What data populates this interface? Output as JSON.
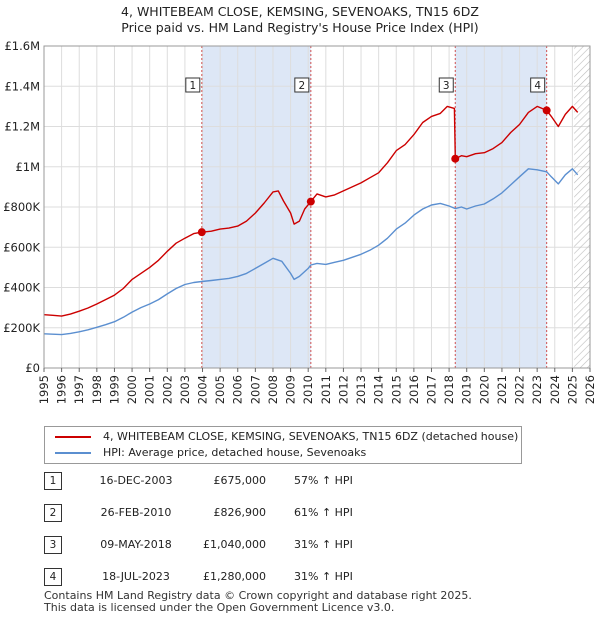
{
  "header": {
    "title_line1": "4, WHITEBEAM CLOSE, KEMSING, SEVENOAKS, TN15 6DZ",
    "title_line2": "Price paid vs. HM Land Registry's House Price Index (HPI)"
  },
  "colors": {
    "property_line": "#cc0000",
    "hpi_line": "#5b8fd0",
    "shade": "#dde7f6",
    "marker_line": "#d05050",
    "grid": "#dddddd",
    "hatch": "#bbbbbb"
  },
  "chart_data": {
    "type": "line",
    "title": "4, WHITEBEAM CLOSE, KEMSING, SEVENOAKS, TN15 6DZ — Price paid vs. HM Land Registry's House Price Index (HPI)",
    "xlim": [
      1995,
      2026
    ],
    "ylim": [
      0,
      1600000
    ],
    "x_ticks": [
      "1995",
      "1996",
      "1997",
      "1998",
      "1999",
      "2000",
      "2001",
      "2002",
      "2003",
      "2004",
      "2005",
      "2006",
      "2007",
      "2008",
      "2009",
      "2010",
      "2011",
      "2012",
      "2013",
      "2014",
      "2015",
      "2016",
      "2017",
      "2018",
      "2019",
      "2020",
      "2021",
      "2022",
      "2023",
      "2024",
      "2025",
      "2026"
    ],
    "y_ticks": [
      {
        "value": 0,
        "label": "£0"
      },
      {
        "value": 200000,
        "label": "£200K"
      },
      {
        "value": 400000,
        "label": "£400K"
      },
      {
        "value": 600000,
        "label": "£600K"
      },
      {
        "value": 800000,
        "label": "£800K"
      },
      {
        "value": 1000000,
        "label": "£1M"
      },
      {
        "value": 1200000,
        "label": "£1.2M"
      },
      {
        "value": 1400000,
        "label": "£1.4M"
      },
      {
        "value": 1600000,
        "label": "£1.6M"
      }
    ],
    "shaded_ranges": [
      [
        2003.96,
        2010.15
      ],
      [
        2018.35,
        2023.54
      ]
    ],
    "future_from": 2025.1,
    "series": [
      {
        "name": "4, WHITEBEAM CLOSE, KEMSING, SEVENOAKS, TN15 6DZ (detached house)",
        "points": [
          [
            1995.0,
            265000
          ],
          [
            1995.5,
            262000
          ],
          [
            1996.0,
            258000
          ],
          [
            1996.5,
            268000
          ],
          [
            1997.0,
            282000
          ],
          [
            1997.5,
            298000
          ],
          [
            1998.0,
            318000
          ],
          [
            1998.5,
            340000
          ],
          [
            1999.0,
            362000
          ],
          [
            1999.5,
            395000
          ],
          [
            2000.0,
            440000
          ],
          [
            2000.5,
            470000
          ],
          [
            2001.0,
            500000
          ],
          [
            2001.5,
            535000
          ],
          [
            2002.0,
            580000
          ],
          [
            2002.5,
            620000
          ],
          [
            2003.0,
            645000
          ],
          [
            2003.5,
            668000
          ],
          [
            2003.96,
            675000
          ],
          [
            2004.5,
            680000
          ],
          [
            2005.0,
            690000
          ],
          [
            2005.5,
            695000
          ],
          [
            2006.0,
            705000
          ],
          [
            2006.5,
            730000
          ],
          [
            2007.0,
            770000
          ],
          [
            2007.5,
            820000
          ],
          [
            2008.0,
            875000
          ],
          [
            2008.3,
            880000
          ],
          [
            2008.6,
            830000
          ],
          [
            2009.0,
            770000
          ],
          [
            2009.2,
            715000
          ],
          [
            2009.5,
            730000
          ],
          [
            2009.8,
            790000
          ],
          [
            2010.15,
            826900
          ],
          [
            2010.5,
            865000
          ],
          [
            2011.0,
            850000
          ],
          [
            2011.5,
            860000
          ],
          [
            2012.0,
            880000
          ],
          [
            2012.5,
            900000
          ],
          [
            2013.0,
            920000
          ],
          [
            2013.5,
            945000
          ],
          [
            2014.0,
            970000
          ],
          [
            2014.5,
            1020000
          ],
          [
            2015.0,
            1080000
          ],
          [
            2015.5,
            1110000
          ],
          [
            2016.0,
            1160000
          ],
          [
            2016.5,
            1220000
          ],
          [
            2017.0,
            1250000
          ],
          [
            2017.5,
            1265000
          ],
          [
            2017.9,
            1300000
          ],
          [
            2018.3,
            1290000
          ],
          [
            2018.35,
            1040000
          ],
          [
            2018.7,
            1055000
          ],
          [
            2019.0,
            1050000
          ],
          [
            2019.5,
            1065000
          ],
          [
            2020.0,
            1070000
          ],
          [
            2020.5,
            1090000
          ],
          [
            2021.0,
            1120000
          ],
          [
            2021.5,
            1170000
          ],
          [
            2022.0,
            1210000
          ],
          [
            2022.5,
            1270000
          ],
          [
            2023.0,
            1300000
          ],
          [
            2023.54,
            1280000
          ],
          [
            2023.8,
            1250000
          ],
          [
            2024.2,
            1200000
          ],
          [
            2024.6,
            1260000
          ],
          [
            2025.0,
            1300000
          ],
          [
            2025.3,
            1270000
          ]
        ]
      },
      {
        "name": "HPI: Average price, detached house, Sevenoaks",
        "points": [
          [
            1995.0,
            170000
          ],
          [
            1995.5,
            168000
          ],
          [
            1996.0,
            166000
          ],
          [
            1996.5,
            172000
          ],
          [
            1997.0,
            180000
          ],
          [
            1997.5,
            190000
          ],
          [
            1998.0,
            202000
          ],
          [
            1998.5,
            215000
          ],
          [
            1999.0,
            230000
          ],
          [
            1999.5,
            252000
          ],
          [
            2000.0,
            278000
          ],
          [
            2000.5,
            300000
          ],
          [
            2001.0,
            318000
          ],
          [
            2001.5,
            340000
          ],
          [
            2002.0,
            368000
          ],
          [
            2002.5,
            395000
          ],
          [
            2003.0,
            415000
          ],
          [
            2003.5,
            425000
          ],
          [
            2003.96,
            430000
          ],
          [
            2004.5,
            435000
          ],
          [
            2005.0,
            440000
          ],
          [
            2005.5,
            445000
          ],
          [
            2006.0,
            455000
          ],
          [
            2006.5,
            470000
          ],
          [
            2007.0,
            495000
          ],
          [
            2007.5,
            520000
          ],
          [
            2008.0,
            545000
          ],
          [
            2008.5,
            530000
          ],
          [
            2009.0,
            470000
          ],
          [
            2009.2,
            440000
          ],
          [
            2009.5,
            455000
          ],
          [
            2010.0,
            495000
          ],
          [
            2010.15,
            512000
          ],
          [
            2010.5,
            520000
          ],
          [
            2011.0,
            515000
          ],
          [
            2011.5,
            525000
          ],
          [
            2012.0,
            535000
          ],
          [
            2012.5,
            550000
          ],
          [
            2013.0,
            565000
          ],
          [
            2013.5,
            585000
          ],
          [
            2014.0,
            610000
          ],
          [
            2014.5,
            645000
          ],
          [
            2015.0,
            690000
          ],
          [
            2015.5,
            720000
          ],
          [
            2016.0,
            760000
          ],
          [
            2016.5,
            790000
          ],
          [
            2017.0,
            810000
          ],
          [
            2017.5,
            818000
          ],
          [
            2018.0,
            805000
          ],
          [
            2018.35,
            792000
          ],
          [
            2018.7,
            800000
          ],
          [
            2019.0,
            790000
          ],
          [
            2019.5,
            805000
          ],
          [
            2020.0,
            815000
          ],
          [
            2020.5,
            840000
          ],
          [
            2021.0,
            870000
          ],
          [
            2021.5,
            910000
          ],
          [
            2022.0,
            950000
          ],
          [
            2022.5,
            990000
          ],
          [
            2023.0,
            985000
          ],
          [
            2023.54,
            975000
          ],
          [
            2023.8,
            950000
          ],
          [
            2024.2,
            915000
          ],
          [
            2024.6,
            960000
          ],
          [
            2025.0,
            990000
          ],
          [
            2025.3,
            960000
          ]
        ]
      }
    ],
    "sales": [
      {
        "label": "1",
        "x": 2003.96,
        "y": 675000
      },
      {
        "label": "2",
        "x": 2010.15,
        "y": 826900
      },
      {
        "label": "3",
        "x": 2018.35,
        "y": 1040000
      },
      {
        "label": "4",
        "x": 2023.54,
        "y": 1280000
      }
    ]
  },
  "legend": {
    "property": "4, WHITEBEAM CLOSE, KEMSING, SEVENOAKS, TN15 6DZ (detached house)",
    "hpi": "HPI: Average price, detached house, Sevenoaks"
  },
  "transactions": [
    {
      "num": "1",
      "date": "16-DEC-2003",
      "price": "£675,000",
      "hpi": "57% ↑ HPI"
    },
    {
      "num": "2",
      "date": "26-FEB-2010",
      "price": "£826,900",
      "hpi": "61% ↑ HPI"
    },
    {
      "num": "3",
      "date": "09-MAY-2018",
      "price": "£1,040,000",
      "hpi": "31% ↑ HPI"
    },
    {
      "num": "4",
      "date": "18-JUL-2023",
      "price": "£1,280,000",
      "hpi": "31% ↑ HPI"
    }
  ],
  "footer": {
    "line1": "Contains HM Land Registry data © Crown copyright and database right 2025.",
    "line2": "This data is licensed under the Open Government Licence v3.0."
  }
}
